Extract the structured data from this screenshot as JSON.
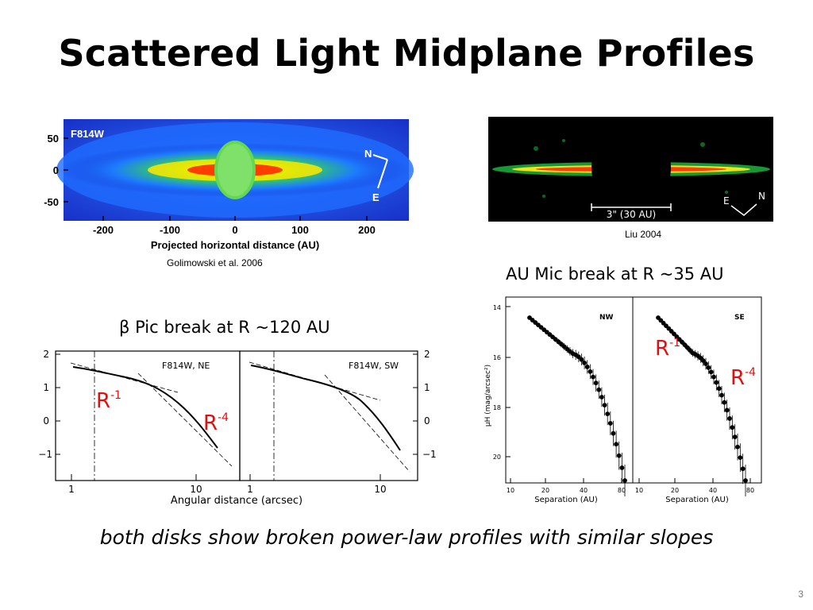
{
  "slide": {
    "title": "Scattered Light Midplane Profiles",
    "page_number": "3",
    "conclusion": "both disks show broken power-law profiles with similar slopes"
  },
  "beta_pic_image": {
    "filter_label": "F814W",
    "y_ticks": [
      "50",
      "0",
      "-50"
    ],
    "x_ticks": [
      "-200",
      "-100",
      "0",
      "100",
      "200"
    ],
    "xlabel": "Projected horizontal distance (AU)",
    "compass": {
      "n": "N",
      "e": "E"
    },
    "caption": "Golimowski et al. 2006"
  },
  "au_mic_image": {
    "scale_label": "3\" (30 AU)",
    "compass": {
      "e": "E",
      "n": "N"
    },
    "caption": "Liu 2004"
  },
  "beta_pic_profile": {
    "subtitle_symbol": "β",
    "subtitle": " Pic break at R ~120 AU",
    "panels": [
      "F814W, NE",
      "F814W, SW"
    ],
    "y_ticks": [
      "2",
      "1",
      "0",
      "−1"
    ],
    "x_ticks": [
      "1",
      "10"
    ],
    "xlabel": "Angular distance (arcsec)",
    "r1_label": "R",
    "r1_exp": "-1",
    "r4_label": "R",
    "r4_exp": "-4"
  },
  "au_mic_profile": {
    "subtitle": "AU Mic break at R ~35 AU",
    "panels": [
      "NW",
      "SE"
    ],
    "y_ticks": [
      "14",
      "16",
      "18",
      "20"
    ],
    "ylabel": "μH (mag/arcsec²)",
    "x_ticks": [
      "10",
      "20",
      "40",
      "80"
    ],
    "xlabel": "Separation (AU)",
    "r1_label": "R",
    "r1_exp": "-1",
    "r4_label": "R",
    "r4_exp": "-4"
  },
  "colors": {
    "annotation_red": "#e01010"
  }
}
